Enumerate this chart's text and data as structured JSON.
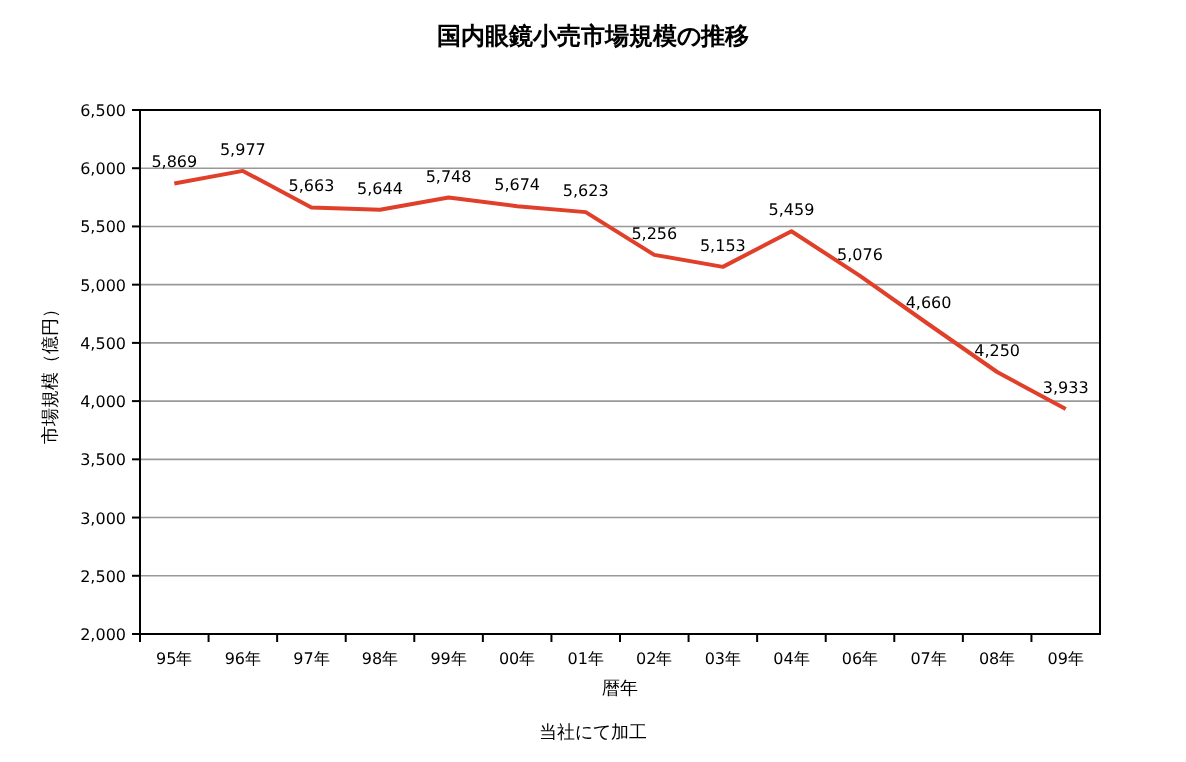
{
  "chart_data": {
    "type": "line",
    "title": "国内眼鏡小売市場規模の推移",
    "xlabel": "暦年",
    "ylabel": "市場規模（億円）",
    "annotations": [
      "当社にて加工"
    ],
    "categories": [
      "95年",
      "96年",
      "97年",
      "98年",
      "99年",
      "00年",
      "01年",
      "02年",
      "03年",
      "04年",
      "06年",
      "07年",
      "08年",
      "09年"
    ],
    "series": [
      {
        "color": "#e0402a",
        "values": [
          5869,
          5977,
          5663,
          5644,
          5748,
          5674,
          5623,
          5256,
          5153,
          5459,
          5076,
          4660,
          4250,
          3933
        ],
        "value_labels": [
          "5,869",
          "5,977",
          "5,663",
          "5,644",
          "5,748",
          "5,674",
          "5,623",
          "5,256",
          "5,153",
          "5,459",
          "5,076",
          "4,660",
          "4,250",
          "3,933"
        ]
      }
    ],
    "ylim": [
      2000,
      6500
    ],
    "yticks": [
      {
        "value": 2000,
        "label": "2,000"
      },
      {
        "value": 2500,
        "label": "2,500"
      },
      {
        "value": 3000,
        "label": "3,000"
      },
      {
        "value": 3500,
        "label": "3,500"
      },
      {
        "value": 4000,
        "label": "4,000"
      },
      {
        "value": 4500,
        "label": "4,500"
      },
      {
        "value": 5000,
        "label": "5,000"
      },
      {
        "value": 5500,
        "label": "5,500"
      },
      {
        "value": 6000,
        "label": "6,000"
      },
      {
        "value": 6500,
        "label": "6,500"
      }
    ],
    "grid": "y",
    "marker": "none",
    "line_style": "solid"
  }
}
